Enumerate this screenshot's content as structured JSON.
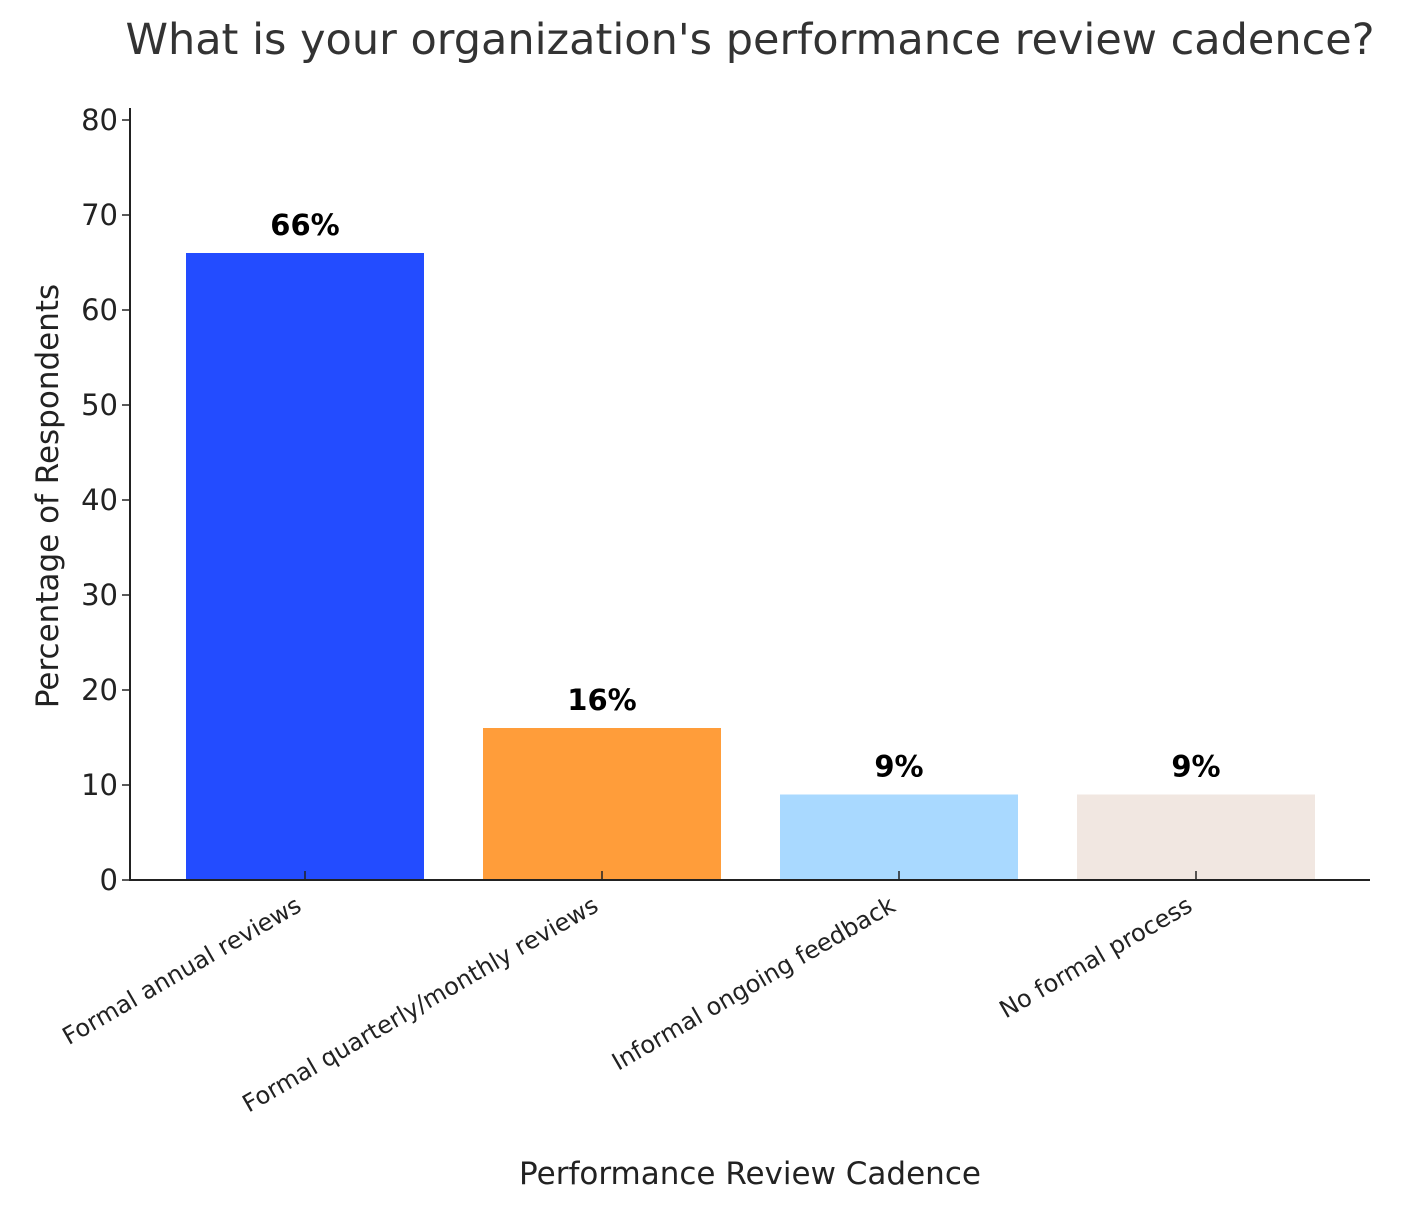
{
  "chart_data": {
    "type": "bar",
    "title": "What is your organization's performance review cadence?",
    "xlabel": "Performance Review Cadence",
    "ylabel": "Percentage of Respondents",
    "categories": [
      "Formal annual reviews",
      "Formal quarterly/monthly reviews",
      "Informal ongoing feedback",
      "No formal process"
    ],
    "values": [
      66,
      16,
      9,
      9
    ],
    "value_labels": [
      "66%",
      "16%",
      "9%",
      "9%"
    ],
    "colors": [
      "#234cff",
      "#ff9d3a",
      "#a9d9ff",
      "#f1e7e1"
    ],
    "ylim": [
      0,
      80
    ],
    "yticks": [
      0,
      10,
      20,
      30,
      40,
      50,
      60,
      70,
      80
    ],
    "grid": false,
    "legend": "none"
  }
}
